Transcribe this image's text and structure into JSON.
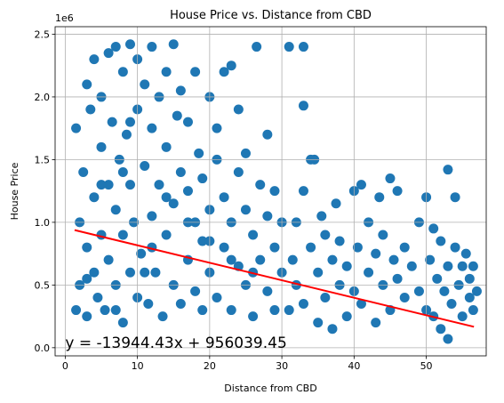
{
  "chart_data": {
    "type": "scatter",
    "title": "House Price vs. Distance from CBD",
    "x_label": "Distance from CBD",
    "y_label": "House Price",
    "y_offset_label": "1e6",
    "color": "#1f77b4",
    "grid": true,
    "xlim": [
      -1.4,
      58.3
    ],
    "ylim": [
      -65000,
      2560000
    ],
    "xticks": [
      0,
      10,
      20,
      30,
      40,
      50
    ],
    "yticks": [
      {
        "value": 0,
        "label": "0.0"
      },
      {
        "value": 500000,
        "label": "0.5"
      },
      {
        "value": 1000000,
        "label": "1.0"
      },
      {
        "value": 1500000,
        "label": "1.5"
      },
      {
        "value": 2000000,
        "label": "2.0"
      },
      {
        "value": 2500000,
        "label": "2.5"
      }
    ],
    "x": [
      1.5,
      1.5,
      2,
      2,
      2.5,
      3,
      3,
      3,
      3.5,
      4,
      4,
      4,
      4.5,
      5,
      5,
      5,
      5.5,
      6,
      6,
      6,
      6.5,
      7,
      7,
      7,
      7.5,
      8,
      8,
      8,
      8.5,
      9,
      9,
      9,
      9.5,
      10,
      10,
      10,
      10.5,
      11,
      11,
      11.5,
      12,
      12,
      12,
      12.5,
      13,
      13,
      13.5,
      14,
      14,
      14,
      15,
      15,
      15,
      15.5,
      16,
      16,
      16,
      17,
      17,
      17,
      18,
      18,
      18,
      18.5,
      19,
      19,
      19,
      20,
      20,
      20,
      21,
      21,
      21,
      22,
      22,
      22,
      23,
      23,
      23,
      24,
      24,
      24,
      25,
      25,
      25,
      26,
      26,
      26.5,
      27,
      27,
      28,
      28,
      28,
      29,
      29,
      29,
      30,
      30,
      31,
      31,
      31.5,
      32,
      32,
      33,
      33,
      33,
      33,
      34,
      34,
      34.5,
      35,
      35,
      35.5,
      36,
      36,
      37,
      37,
      37.5,
      38,
      38,
      39,
      39,
      40,
      40,
      40.5,
      41,
      41,
      42,
      42,
      43,
      43,
      43.5,
      44,
      44,
      45,
      45,
      45.5,
      46,
      46,
      47,
      47,
      48,
      49,
      49,
      50,
      50,
      50.5,
      51,
      51,
      51.5,
      52,
      52,
      52.5,
      53,
      53,
      53,
      53.5,
      54,
      54,
      54.5,
      55,
      55,
      55.5,
      56,
      56,
      56.5,
      57,
      56.5,
      3,
      5,
      8,
      11,
      14,
      17,
      20,
      23,
      26,
      12,
      9,
      7
    ],
    "values": [
      300000,
      1750000,
      500000,
      1000000,
      1400000,
      250000,
      800000,
      2100000,
      1900000,
      600000,
      1200000,
      2300000,
      400000,
      1600000,
      900000,
      2000000,
      300000,
      1300000,
      700000,
      2350000,
      1800000,
      500000,
      1100000,
      2400000,
      1500000,
      200000,
      900000,
      2200000,
      1700000,
      600000,
      1300000,
      2420000,
      1000000,
      400000,
      1900000,
      2300000,
      750000,
      1450000,
      2100000,
      350000,
      1050000,
      1750000,
      2400000,
      600000,
      1300000,
      2000000,
      250000,
      900000,
      1600000,
      2200000,
      500000,
      1150000,
      2420000,
      1850000,
      350000,
      1400000,
      2050000,
      700000,
      1250000,
      1800000,
      450000,
      1000000,
      2200000,
      1550000,
      300000,
      850000,
      1350000,
      600000,
      1100000,
      2000000,
      400000,
      1500000,
      1750000,
      800000,
      1200000,
      2200000,
      300000,
      1000000,
      2250000,
      650000,
      1400000,
      1900000,
      500000,
      1100000,
      1550000,
      250000,
      900000,
      2400000,
      700000,
      1300000,
      450000,
      1050000,
      1700000,
      300000,
      800000,
      1250000,
      600000,
      1000000,
      2400000,
      300000,
      700000,
      500000,
      1000000,
      2400000,
      1930000,
      1250000,
      350000,
      800000,
      1500000,
      1500000,
      200000,
      600000,
      1050000,
      400000,
      900000,
      150000,
      700000,
      1150000,
      500000,
      850000,
      250000,
      650000,
      1250000,
      450000,
      800000,
      1300000,
      350000,
      600000,
      1000000,
      200000,
      750000,
      1200000,
      500000,
      900000,
      1350000,
      300000,
      700000,
      1250000,
      550000,
      400000,
      800000,
      650000,
      1000000,
      450000,
      1200000,
      300000,
      700000,
      950000,
      250000,
      550000,
      850000,
      150000,
      450000,
      1420000,
      650000,
      70000,
      350000,
      1200000,
      800000,
      500000,
      250000,
      650000,
      750000,
      400000,
      550000,
      300000,
      450000,
      650000,
      550000,
      1300000,
      1400000,
      600000,
      1200000,
      1000000,
      850000,
      700000,
      600000,
      800000,
      1800000,
      300000
    ],
    "fit_line": {
      "color": "#ff0000",
      "x": [
        1.3,
        56.6
      ],
      "values": [
        937911.7,
        166781.7
      ]
    },
    "annotation": {
      "text": "y = -13944.43x + 956039.45",
      "x": 0,
      "y": 0,
      "color": "#ff0000"
    }
  }
}
